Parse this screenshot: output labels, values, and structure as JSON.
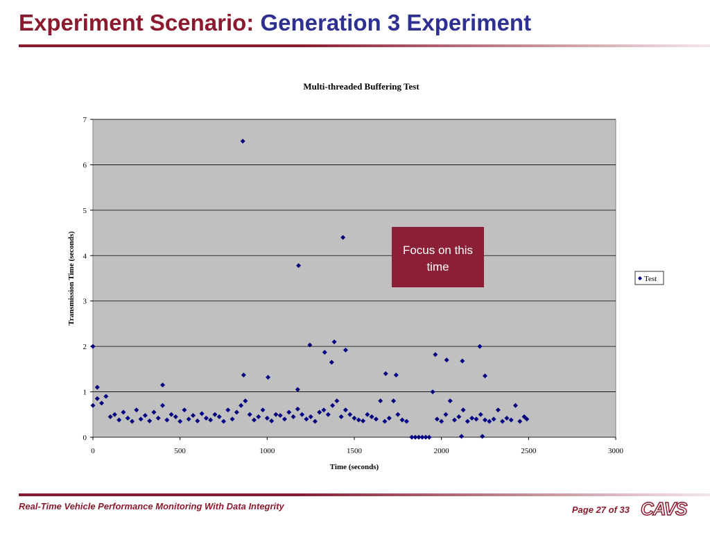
{
  "slide": {
    "title_part1": "Experiment Scenario:",
    "title_part2": "Generation 3 Experiment",
    "annotation": "Focus on this time",
    "footer": "Real-Time Vehicle Performance Monitoring With Data Integrity",
    "page": "Page 27 of 33",
    "logo": "CAVS"
  },
  "chart_data": {
    "type": "scatter",
    "title": "Multi-threaded Buffering Test",
    "x_label": "Time (seconds)",
    "y_label": "Transmission Time (seconds)",
    "xlim": [
      0,
      3000
    ],
    "xticks": [
      0,
      500,
      1000,
      1500,
      2000,
      2500,
      3000
    ],
    "ylim": [
      0,
      7
    ],
    "yticks": [
      0,
      1,
      2,
      3,
      4,
      5,
      6,
      7
    ],
    "grid": true,
    "legend": "right",
    "background": "#c0c0c0",
    "x": [
      0,
      25,
      50,
      75,
      100,
      125,
      150,
      175,
      200,
      225,
      250,
      275,
      300,
      325,
      350,
      375,
      400,
      425,
      450,
      475,
      500,
      525,
      550,
      575,
      600,
      625,
      650,
      675,
      700,
      725,
      750,
      775,
      800,
      825,
      850,
      875,
      900,
      925,
      950,
      975,
      1000,
      1025,
      1050,
      1075,
      1100,
      1125,
      1150,
      1175,
      1200,
      1225,
      1250,
      1275,
      1300,
      1325,
      1350,
      1375,
      1400,
      1425,
      1450,
      1475,
      1500,
      1525,
      1550,
      1575,
      1600,
      1625,
      1650,
      1675,
      1700,
      1725,
      1750,
      1775,
      1800,
      1830,
      1850,
      1870,
      1890,
      1910,
      1930,
      1950,
      1975,
      2000,
      2025,
      2050,
      2075,
      2100,
      2125,
      2150,
      2175,
      2200,
      2225,
      2250,
      2275,
      2300,
      2325,
      2350,
      2375,
      2400,
      2425,
      2450,
      2475,
      2490,
      860,
      1180,
      1435,
      1385,
      1245,
      1450,
      2220,
      2235,
      2115,
      1330,
      1370,
      1965,
      2030,
      2120,
      2250,
      1005,
      865,
      400,
      25,
      1175,
      1680,
      1740,
      0
    ],
    "series": [
      {
        "name": "Test",
        "color": "#000080",
        "values": [
          0.7,
          0.85,
          0.75,
          0.9,
          0.45,
          0.5,
          0.38,
          0.55,
          0.42,
          0.35,
          0.6,
          0.4,
          0.48,
          0.36,
          0.55,
          0.42,
          0.7,
          0.38,
          0.5,
          0.45,
          0.35,
          0.6,
          0.4,
          0.48,
          0.36,
          0.52,
          0.42,
          0.38,
          0.5,
          0.45,
          0.35,
          0.6,
          0.4,
          0.55,
          0.7,
          0.8,
          0.5,
          0.38,
          0.45,
          0.6,
          0.42,
          0.36,
          0.5,
          0.48,
          0.4,
          0.55,
          0.45,
          0.62,
          0.5,
          0.4,
          0.45,
          0.35,
          0.55,
          0.6,
          0.5,
          0.7,
          0.8,
          0.45,
          0.6,
          0.5,
          0.42,
          0.38,
          0.36,
          0.5,
          0.45,
          0.4,
          0.8,
          0.35,
          0.42,
          0.8,
          0.5,
          0.38,
          0.35,
          0,
          0,
          0,
          0,
          0,
          0,
          1.0,
          0.4,
          0.35,
          0.5,
          0.8,
          0.38,
          0.45,
          0.6,
          0.35,
          0.42,
          0.4,
          0.5,
          0.38,
          0.35,
          0.4,
          0.6,
          0.35,
          0.42,
          0.38,
          0.7,
          0.35,
          0.45,
          0.4,
          6.52,
          3.78,
          4.4,
          2.1,
          2.03,
          1.92,
          2.0,
          0.02,
          0.02,
          1.87,
          1.65,
          1.82,
          1.7,
          1.68,
          1.35,
          1.32,
          1.37,
          1.15,
          1.1,
          1.05,
          1.4,
          1.37,
          2.0
        ]
      }
    ]
  }
}
